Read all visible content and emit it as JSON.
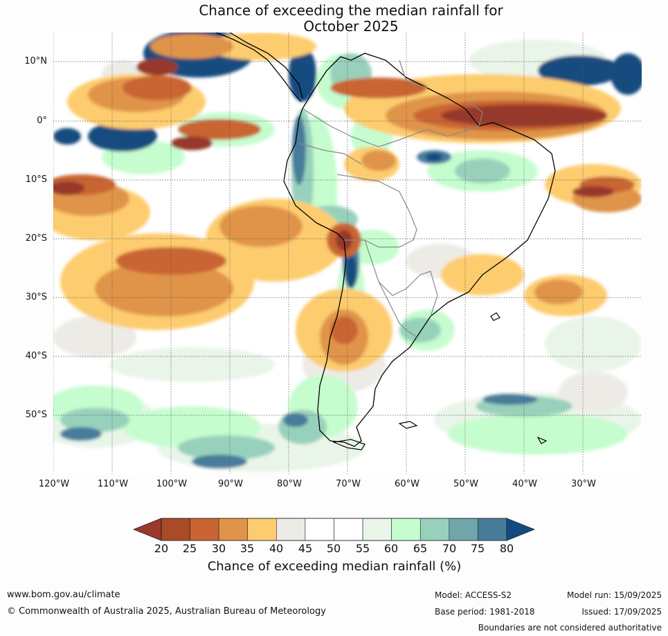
{
  "title_line1": "Chance of exceeding the median rainfall for",
  "title_line2": "October 2025",
  "map": {
    "lat_labels": [
      "10°N",
      "0°",
      "10°S",
      "20°S",
      "30°S",
      "40°S",
      "50°S"
    ],
    "lon_labels": [
      "120°W",
      "110°W",
      "100°W",
      "90°W",
      "80°W",
      "70°W",
      "60°W",
      "50°W",
      "40°W",
      "30°W"
    ],
    "lat_range": [
      -60,
      15
    ],
    "lon_range": [
      -120,
      -20
    ],
    "grid": true
  },
  "colorbar": {
    "title": "Chance of exceeding median rainfall (%)",
    "ticks": [
      "20",
      "25",
      "30",
      "35",
      "40",
      "45",
      "50",
      "55",
      "60",
      "65",
      "70",
      "75",
      "80"
    ],
    "colors": [
      "#98392a",
      "#aa4a28",
      "#c96532",
      "#e0944a",
      "#fdcc6e",
      "#edebe6",
      "#ffffff",
      "#ffffff",
      "#e9f5e9",
      "#c5fdcf",
      "#98d1bb",
      "#6fa6a9",
      "#477c9b",
      "#124b7f"
    ]
  },
  "footer": {
    "website": "www.bom.gov.au/climate",
    "copyright": "© Commonwealth of Australia 2025, Australian Bureau of Meteorology",
    "model": "Model: ACCESS-S2",
    "base_period": "Base period: 1981-2018",
    "model_run": "Model run: 15/09/2025",
    "issued": "Issued: 17/09/2025",
    "disclaimer": "Boundaries are not considered authoritative"
  }
}
